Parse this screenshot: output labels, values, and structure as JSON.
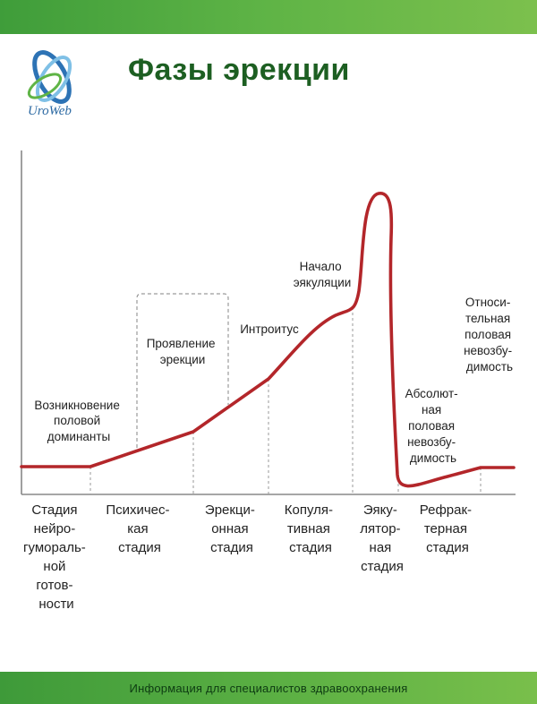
{
  "header": {
    "title": "Фазы эрекции",
    "logo_text": "UroWeb",
    "accent_color": "#5cb044",
    "title_color": "#1d5f22"
  },
  "diagram": {
    "curve_color": "#b3262a",
    "annotations": {
      "dominant": [
        "Возникновение",
        "половой",
        "доминанты"
      ],
      "manifestation": [
        "Проявление",
        "эрекции"
      ],
      "introitus": [
        "Интроитус"
      ],
      "ejaculation_start": [
        "Начало",
        "эякуляции"
      ],
      "absolute": [
        "Абсолют-",
        "ная",
        "половая",
        "невозбу-",
        "димость"
      ],
      "relative": [
        "Относи-",
        "тельная",
        "половая",
        "невозбу-",
        "димость"
      ]
    },
    "stages": [
      [
        "Стадия",
        "нейро-",
        "гумораль-",
        "ной",
        "готов-",
        "ности"
      ],
      [
        "Психичес-",
        "кая",
        "стадия"
      ],
      [
        "Эрекци-",
        "онная",
        "стадия"
      ],
      [
        "Копуля-",
        "тивная",
        "стадия"
      ],
      [
        "Эяку-",
        "лятор-",
        "ная",
        "стадия"
      ],
      [
        "Рефрак-",
        "терная",
        "стадия"
      ]
    ]
  },
  "footer": {
    "text": "Информация для специалистов здравоохранения"
  }
}
